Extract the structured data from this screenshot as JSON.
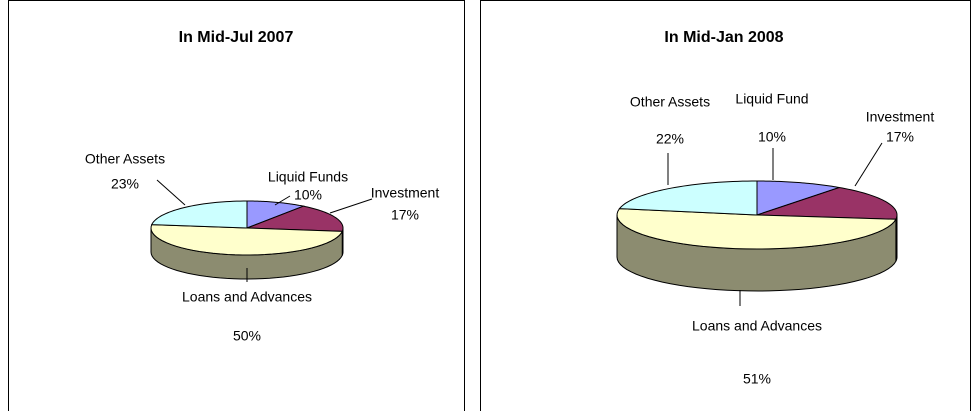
{
  "chart_data": [
    {
      "type": "pie3d",
      "title": "In Mid-Jul 2007",
      "categories": [
        "Liquid Funds",
        "Investment",
        "Loans and Advances",
        "Other Assets"
      ],
      "values": [
        10,
        17,
        50,
        23
      ],
      "value_labels": [
        "10%",
        "17%",
        "50%",
        "23%"
      ],
      "colors": [
        "#9999ff",
        "#993366",
        "#ffffcc",
        "#ccffff"
      ]
    },
    {
      "type": "pie3d",
      "title": "In Mid-Jan 2008",
      "categories": [
        "Liquid Fund",
        "Investment",
        "Loans and Advances",
        "Other Assets"
      ],
      "values": [
        10,
        17,
        51,
        22
      ],
      "value_labels": [
        "10%",
        "17%",
        "51%",
        "22%"
      ],
      "colors": [
        "#9999ff",
        "#993366",
        "#ffffcc",
        "#ccffff"
      ]
    }
  ]
}
